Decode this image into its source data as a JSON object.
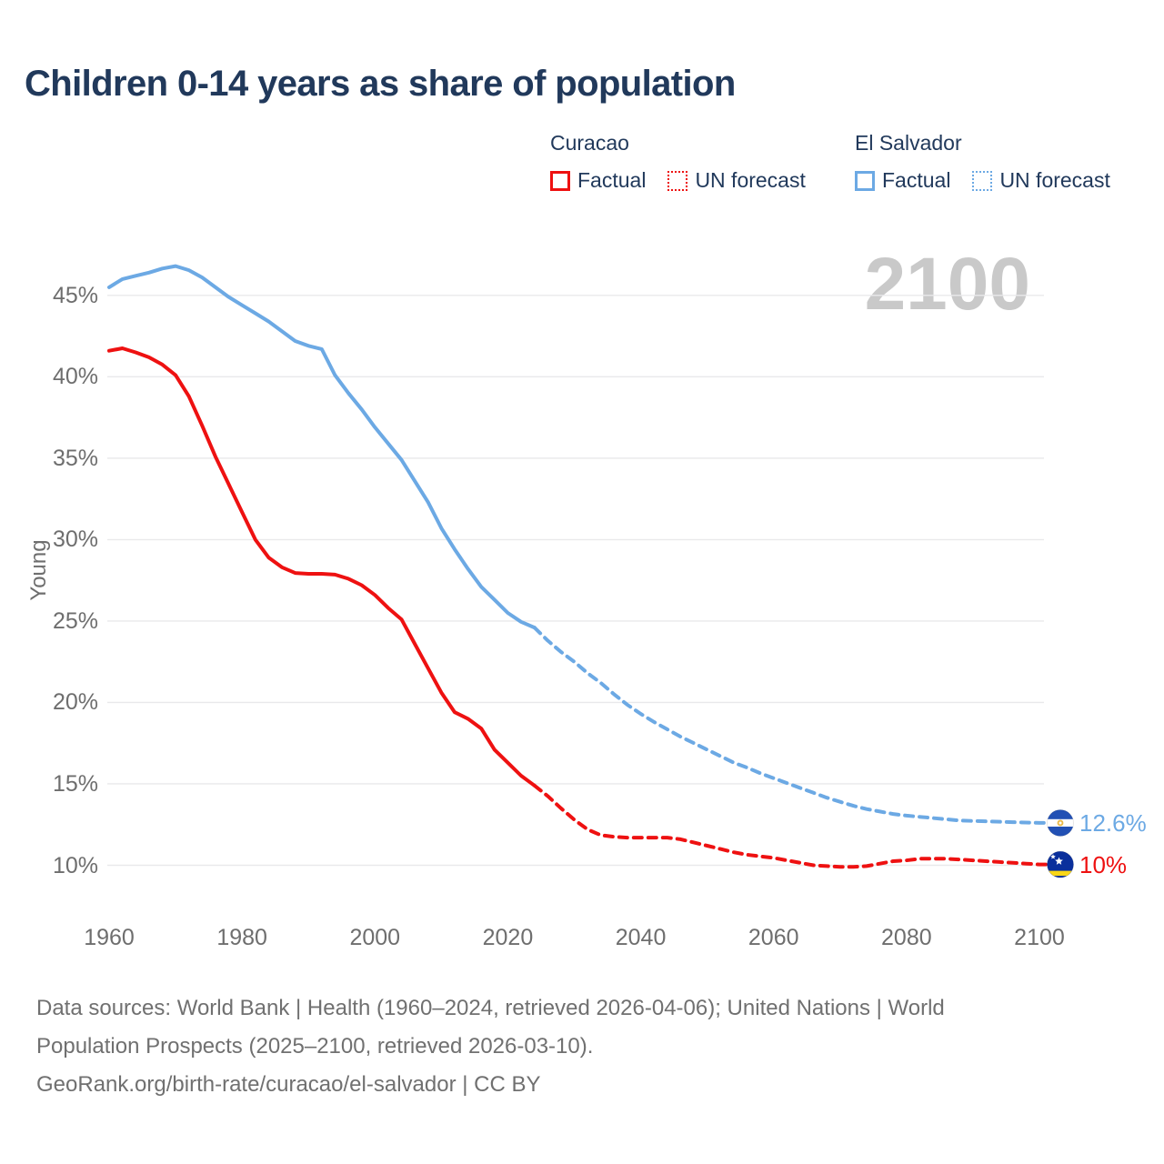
{
  "title": "Children 0-14 years as share of population",
  "watermark": "2100",
  "y_axis_label": "Young",
  "colors": {
    "curacao": "#ee1111",
    "el_salvador": "#6ca9e4",
    "title_text": "#21395b",
    "axis_text": "#6e6e6e",
    "grid": "#e9e9eb",
    "watermark": "#c9c9c9",
    "footer_text": "#707070"
  },
  "flags": {
    "el_salvador": {
      "blue": "#2250b4",
      "white": "#ffffff",
      "gold": "#e9b949"
    },
    "curacao": {
      "blue": "#0a2f9c",
      "yellow": "#f9d616",
      "white": "#ffffff"
    }
  },
  "legend": {
    "groups": [
      {
        "name": "Curacao",
        "color": "#ee1111",
        "items": [
          {
            "label": "Factual",
            "style": "solid"
          },
          {
            "label": "UN forecast",
            "style": "dotted"
          }
        ]
      },
      {
        "name": "El Salvador",
        "color": "#6ca9e4",
        "items": [
          {
            "label": "Factual",
            "style": "solid"
          },
          {
            "label": "UN forecast",
            "style": "dotted"
          }
        ]
      }
    ]
  },
  "footer": {
    "line1": "Data sources: World Bank | Health (1960–2024, retrieved 2026-04-06); United Nations | World",
    "line2": "Population Prospects (2025–2100, retrieved 2026-03-10).",
    "line3": "GeoRank.org/birth-rate/curacao/el-salvador | CC BY"
  },
  "chart_data": {
    "type": "line",
    "title": "Children 0-14 years as share of population",
    "xlabel": "",
    "ylabel": "Young",
    "ylim": [
      8,
      48
    ],
    "xlim": [
      1960,
      2100
    ],
    "grid": "horizontal-only",
    "legend_position": "top-right",
    "yticks": [
      {
        "label": "45%",
        "value": 45
      },
      {
        "label": "40%",
        "value": 40
      },
      {
        "label": "35%",
        "value": 35
      },
      {
        "label": "30%",
        "value": 30
      },
      {
        "label": "25%",
        "value": 25
      },
      {
        "label": "20%",
        "value": 20
      },
      {
        "label": "15%",
        "value": 15
      },
      {
        "label": "10%",
        "value": 10
      }
    ],
    "xticks": [
      {
        "label": "1960",
        "year": 1960
      },
      {
        "label": "1980",
        "year": 1980
      },
      {
        "label": "2000",
        "year": 2000
      },
      {
        "label": "2020",
        "year": 2020
      },
      {
        "label": "2040",
        "year": 2040
      },
      {
        "label": "2060",
        "year": 2060
      },
      {
        "label": "2080",
        "year": 2080
      },
      {
        "label": "2100",
        "year": 2100
      }
    ],
    "series": [
      {
        "name": "El Salvador — Factual",
        "color": "#6ca9e4",
        "style": "solid",
        "extend_to_flag": false,
        "points": [
          [
            1960,
            45.5
          ],
          [
            1962,
            46.0
          ],
          [
            1964,
            46.2
          ],
          [
            1966,
            46.4
          ],
          [
            1968,
            46.65
          ],
          [
            1970,
            46.8
          ],
          [
            1972,
            46.55
          ],
          [
            1974,
            46.1
          ],
          [
            1976,
            45.5
          ],
          [
            1978,
            44.9
          ],
          [
            1980,
            44.4
          ],
          [
            1982,
            43.9
          ],
          [
            1984,
            43.4
          ],
          [
            1986,
            42.8
          ],
          [
            1988,
            42.2
          ],
          [
            1990,
            41.9
          ],
          [
            1992,
            41.7
          ],
          [
            1994,
            40.1
          ],
          [
            1996,
            39.0
          ],
          [
            1998,
            38.0
          ],
          [
            2000,
            36.9
          ],
          [
            2002,
            35.9
          ],
          [
            2004,
            34.9
          ],
          [
            2006,
            33.6
          ],
          [
            2008,
            32.3
          ],
          [
            2010,
            30.7
          ],
          [
            2012,
            29.4
          ],
          [
            2014,
            28.2
          ],
          [
            2016,
            27.1
          ],
          [
            2018,
            26.3
          ],
          [
            2020,
            25.5
          ],
          [
            2022,
            24.95
          ],
          [
            2024,
            24.6
          ]
        ]
      },
      {
        "name": "El Salvador — UN forecast",
        "color": "#6ca9e4",
        "style": "dashed",
        "extend_to_flag": true,
        "points": [
          [
            2024,
            24.6
          ],
          [
            2026,
            23.8
          ],
          [
            2028,
            23.1
          ],
          [
            2030,
            22.5
          ],
          [
            2032,
            21.8
          ],
          [
            2034,
            21.2
          ],
          [
            2036,
            20.5
          ],
          [
            2038,
            19.85
          ],
          [
            2040,
            19.3
          ],
          [
            2042,
            18.8
          ],
          [
            2044,
            18.35
          ],
          [
            2046,
            17.9
          ],
          [
            2048,
            17.5
          ],
          [
            2050,
            17.1
          ],
          [
            2052,
            16.7
          ],
          [
            2054,
            16.3
          ],
          [
            2056,
            16.0
          ],
          [
            2058,
            15.65
          ],
          [
            2060,
            15.35
          ],
          [
            2062,
            15.05
          ],
          [
            2064,
            14.75
          ],
          [
            2066,
            14.45
          ],
          [
            2068,
            14.15
          ],
          [
            2070,
            13.9
          ],
          [
            2072,
            13.65
          ],
          [
            2074,
            13.45
          ],
          [
            2076,
            13.3
          ],
          [
            2078,
            13.15
          ],
          [
            2080,
            13.05
          ],
          [
            2084,
            12.9
          ],
          [
            2088,
            12.75
          ],
          [
            2092,
            12.7
          ],
          [
            2096,
            12.65
          ],
          [
            2100,
            12.6
          ]
        ]
      },
      {
        "name": "Curacao — Factual",
        "color": "#ee1111",
        "style": "solid",
        "extend_to_flag": false,
        "points": [
          [
            1960,
            41.6
          ],
          [
            1962,
            41.75
          ],
          [
            1964,
            41.5
          ],
          [
            1966,
            41.2
          ],
          [
            1968,
            40.75
          ],
          [
            1970,
            40.1
          ],
          [
            1972,
            38.8
          ],
          [
            1974,
            37.0
          ],
          [
            1976,
            35.1
          ],
          [
            1978,
            33.4
          ],
          [
            1980,
            31.7
          ],
          [
            1982,
            30.0
          ],
          [
            1984,
            28.9
          ],
          [
            1986,
            28.3
          ],
          [
            1988,
            27.95
          ],
          [
            1990,
            27.9
          ],
          [
            1992,
            27.9
          ],
          [
            1994,
            27.85
          ],
          [
            1996,
            27.6
          ],
          [
            1998,
            27.2
          ],
          [
            2000,
            26.6
          ],
          [
            2002,
            25.8
          ],
          [
            2004,
            25.1
          ],
          [
            2006,
            23.6
          ],
          [
            2008,
            22.1
          ],
          [
            2010,
            20.6
          ],
          [
            2012,
            19.4
          ],
          [
            2014,
            19.0
          ],
          [
            2016,
            18.4
          ],
          [
            2018,
            17.1
          ],
          [
            2020,
            16.3
          ],
          [
            2022,
            15.5
          ],
          [
            2024,
            14.9
          ]
        ]
      },
      {
        "name": "Curacao — UN forecast",
        "color": "#ee1111",
        "style": "dashed",
        "extend_to_flag": true,
        "points": [
          [
            2024,
            14.9
          ],
          [
            2026,
            14.25
          ],
          [
            2028,
            13.5
          ],
          [
            2030,
            12.8
          ],
          [
            2032,
            12.2
          ],
          [
            2034,
            11.85
          ],
          [
            2036,
            11.75
          ],
          [
            2038,
            11.7
          ],
          [
            2040,
            11.7
          ],
          [
            2042,
            11.7
          ],
          [
            2044,
            11.7
          ],
          [
            2046,
            11.6
          ],
          [
            2048,
            11.4
          ],
          [
            2050,
            11.2
          ],
          [
            2052,
            11.0
          ],
          [
            2054,
            10.8
          ],
          [
            2056,
            10.65
          ],
          [
            2058,
            10.55
          ],
          [
            2060,
            10.45
          ],
          [
            2062,
            10.3
          ],
          [
            2064,
            10.15
          ],
          [
            2066,
            10.0
          ],
          [
            2068,
            9.95
          ],
          [
            2070,
            9.9
          ],
          [
            2072,
            9.9
          ],
          [
            2074,
            9.95
          ],
          [
            2076,
            10.1
          ],
          [
            2078,
            10.25
          ],
          [
            2080,
            10.3
          ],
          [
            2082,
            10.4
          ],
          [
            2084,
            10.4
          ],
          [
            2086,
            10.4
          ],
          [
            2088,
            10.35
          ],
          [
            2090,
            10.3
          ],
          [
            2092,
            10.25
          ],
          [
            2094,
            10.2
          ],
          [
            2096,
            10.15
          ],
          [
            2098,
            10.1
          ],
          [
            2100,
            10.05
          ]
        ]
      }
    ],
    "end_labels": [
      {
        "series": "El Salvador",
        "value_label": "12.6%",
        "y_value": 12.6,
        "color": "#6ca9e4",
        "flag": "el-salvador"
      },
      {
        "series": "Curacao",
        "value_label": "10%",
        "y_value": 10.05,
        "color": "#ee1111",
        "flag": "curacao"
      }
    ]
  }
}
